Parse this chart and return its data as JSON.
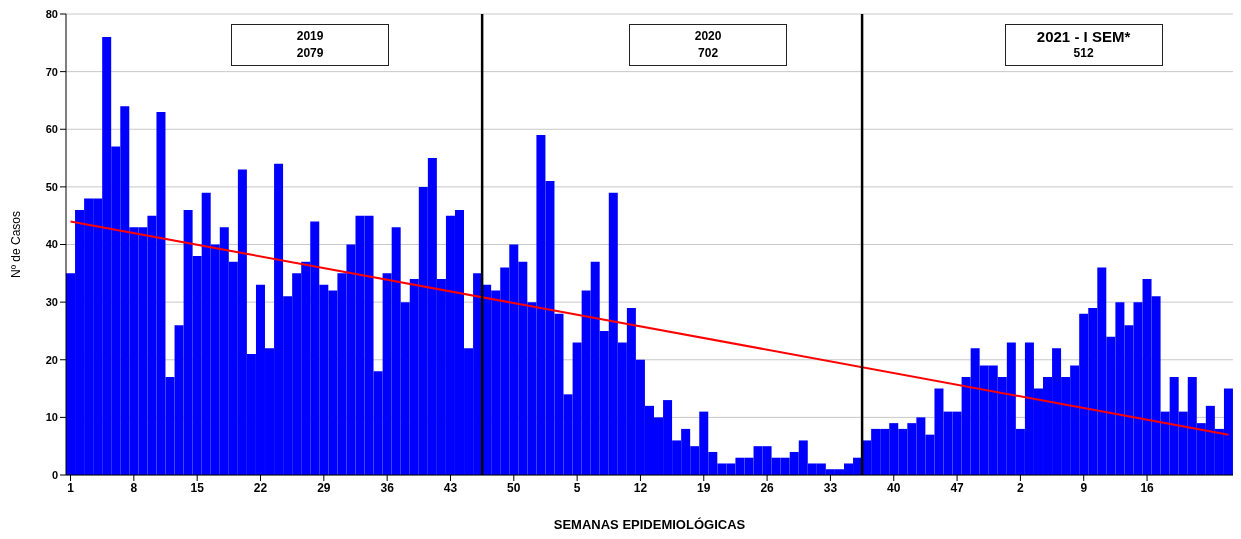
{
  "chart_data": {
    "type": "bar",
    "xlabel": "SEMANAS EPIDEMIOLÓGICAS",
    "ylabel": "Nº de Casos",
    "categories": [
      "1",
      null,
      null,
      null,
      null,
      null,
      null,
      "8",
      null,
      null,
      null,
      null,
      null,
      null,
      "15",
      null,
      null,
      null,
      null,
      null,
      null,
      "22",
      null,
      null,
      null,
      null,
      null,
      null,
      "29",
      null,
      null,
      null,
      null,
      null,
      null,
      "36",
      null,
      null,
      null,
      null,
      null,
      null,
      "43",
      null,
      null,
      null,
      null,
      null,
      null,
      "50",
      null,
      null,
      null,
      null,
      null,
      null,
      "5",
      null,
      null,
      null,
      null,
      null,
      null,
      "12",
      null,
      null,
      null,
      null,
      null,
      null,
      "19",
      null,
      null,
      null,
      null,
      null,
      null,
      "26",
      null,
      null,
      null,
      null,
      null,
      null,
      "33",
      null,
      null,
      null,
      null,
      null,
      null,
      "40",
      null,
      null,
      null,
      null,
      null,
      null,
      "47",
      null,
      null,
      null,
      null,
      null,
      null,
      "2",
      null,
      null,
      null,
      null,
      null,
      null,
      "9",
      null,
      null,
      null,
      null,
      null,
      null,
      "16",
      null,
      null,
      null,
      null,
      null,
      null,
      null,
      null,
      null
    ],
    "series": [
      {
        "color": "#0000ff",
        "values": [
          35,
          46,
          48,
          48,
          76,
          57,
          64,
          43,
          43,
          45,
          63,
          17,
          26,
          46,
          38,
          49,
          40,
          43,
          37,
          53,
          21,
          33,
          22,
          54,
          31,
          35,
          37,
          44,
          33,
          32,
          35,
          40,
          45,
          45,
          18,
          35,
          43,
          30,
          34,
          50,
          55,
          34,
          45,
          46,
          22,
          35,
          33,
          32,
          36,
          40,
          37,
          30,
          59,
          51,
          28,
          14,
          23,
          32,
          37,
          25,
          49,
          23,
          29,
          20,
          12,
          10,
          13,
          6,
          8,
          5,
          11,
          4,
          2,
          2,
          3,
          3,
          5,
          5,
          3,
          3,
          4,
          6,
          2,
          2,
          1,
          1,
          2,
          3,
          6,
          8,
          8,
          9,
          8,
          9,
          10,
          7,
          15,
          11,
          11,
          17,
          22,
          19,
          19,
          17,
          23,
          8,
          23,
          15,
          17,
          22,
          17,
          19,
          28,
          29,
          36,
          24,
          30,
          26,
          30,
          34,
          31,
          11,
          17,
          11,
          17,
          9,
          12,
          8,
          15
        ]
      },
      {
        "type": "line",
        "color": "#ff0000",
        "values": [
          44,
          null,
          null,
          null,
          null,
          null,
          null,
          null,
          null,
          null,
          null,
          null,
          null,
          null,
          null,
          null,
          null,
          null,
          null,
          null,
          null,
          null,
          null,
          null,
          null,
          null,
          null,
          null,
          null,
          null,
          null,
          null,
          null,
          null,
          null,
          null,
          null,
          null,
          null,
          null,
          null,
          null,
          null,
          null,
          null,
          null,
          null,
          null,
          null,
          null,
          null,
          null,
          null,
          null,
          null,
          null,
          null,
          null,
          null,
          null,
          null,
          null,
          null,
          null,
          null,
          null,
          null,
          null,
          null,
          null,
          null,
          null,
          null,
          null,
          null,
          null,
          null,
          null,
          null,
          null,
          null,
          null,
          null,
          null,
          null,
          null,
          null,
          null,
          null,
          null,
          null,
          null,
          null,
          null,
          null,
          null,
          null,
          null,
          null,
          null,
          null,
          null,
          null,
          null,
          null,
          null,
          null,
          null,
          null,
          null,
          null,
          null,
          null,
          null,
          null,
          null,
          null,
          null,
          null,
          null,
          null,
          null,
          null,
          null,
          null,
          null,
          null,
          null,
          7
        ]
      }
    ],
    "ylim": [
      0,
      80
    ],
    "yticks": [
      0,
      10,
      20,
      30,
      40,
      50,
      60,
      70,
      80
    ],
    "grid": "y",
    "marker": "none",
    "annotations": [
      "2019\n2079",
      "2020\n702",
      "2021 - I SEM*\n512"
    ]
  }
}
